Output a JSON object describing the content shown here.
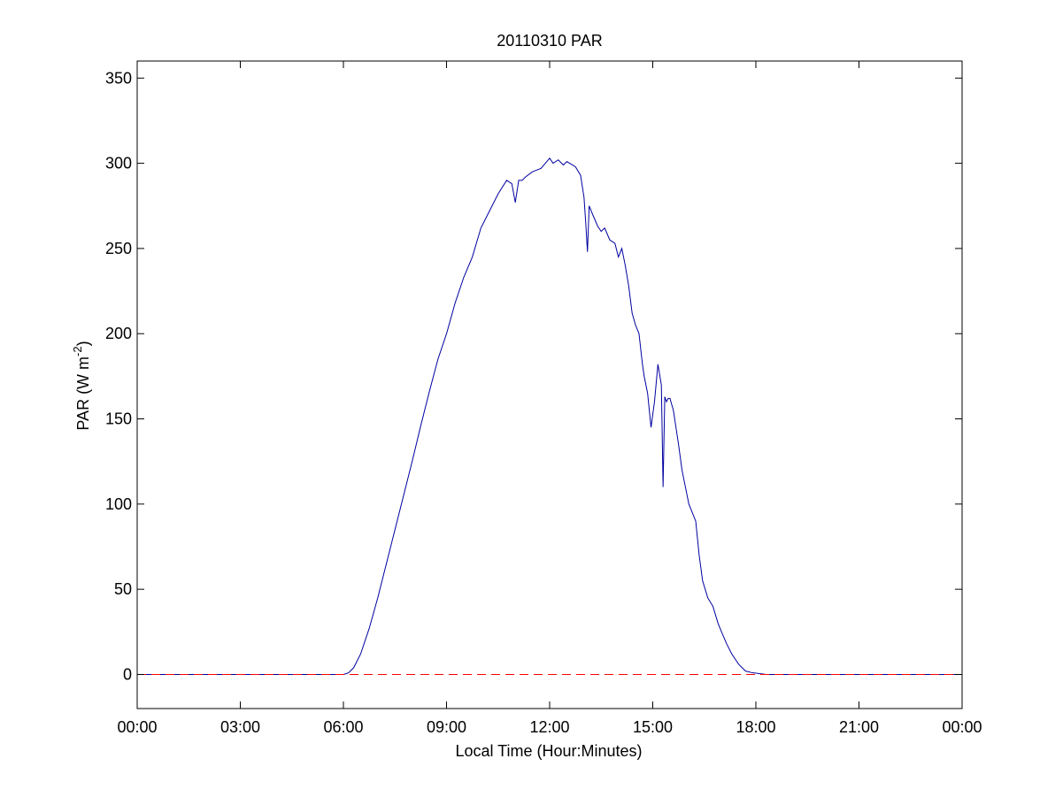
{
  "chart_data": {
    "type": "line",
    "title": "20110310 PAR",
    "xlabel": "Local Time (Hour:Minutes)",
    "ylabel": {
      "main": "PAR (W m",
      "superscript": "-2",
      "close": ")"
    },
    "x_unit": "hours",
    "xlim": [
      0,
      24
    ],
    "ylim": [
      -20,
      360
    ],
    "x_ticks": [
      {
        "value": 0,
        "label": "00:00"
      },
      {
        "value": 3,
        "label": "03:00"
      },
      {
        "value": 6,
        "label": "06:00"
      },
      {
        "value": 9,
        "label": "09:00"
      },
      {
        "value": 12,
        "label": "12:00"
      },
      {
        "value": 15,
        "label": "15:00"
      },
      {
        "value": 18,
        "label": "18:00"
      },
      {
        "value": 21,
        "label": "21:00"
      },
      {
        "value": 24,
        "label": "00:00"
      }
    ],
    "y_ticks": [
      {
        "value": 0,
        "label": "0"
      },
      {
        "value": 50,
        "label": "50"
      },
      {
        "value": 100,
        "label": "100"
      },
      {
        "value": 150,
        "label": "150"
      },
      {
        "value": 200,
        "label": "200"
      },
      {
        "value": 250,
        "label": "250"
      },
      {
        "value": 300,
        "label": "300"
      },
      {
        "value": 350,
        "label": "350"
      }
    ],
    "grid": false,
    "legend": "none",
    "series": [
      {
        "color": "#0000a0",
        "style": "solid",
        "x": [
          0,
          6.0,
          6.15,
          6.3,
          6.5,
          6.75,
          7.0,
          7.25,
          7.5,
          7.75,
          8.0,
          8.25,
          8.5,
          8.75,
          9.0,
          9.25,
          9.5,
          9.75,
          10.0,
          10.25,
          10.5,
          10.75,
          10.9,
          11.0,
          11.1,
          11.2,
          11.3,
          11.5,
          11.75,
          12.0,
          12.1,
          12.25,
          12.4,
          12.5,
          12.75,
          12.9,
          13.0,
          13.05,
          13.1,
          13.15,
          13.25,
          13.4,
          13.5,
          13.6,
          13.75,
          13.9,
          14.0,
          14.1,
          14.2,
          14.3,
          14.4,
          14.5,
          14.6,
          14.7,
          14.75,
          14.85,
          14.95,
          15.05,
          15.15,
          15.25,
          15.3,
          15.35,
          15.4,
          15.45,
          15.5,
          15.6,
          15.75,
          15.85,
          15.95,
          16.05,
          16.15,
          16.25,
          16.35,
          16.45,
          16.6,
          16.75,
          16.9,
          17.0,
          17.15,
          17.3,
          17.5,
          17.7,
          17.9,
          18.1,
          18.3,
          18.6,
          19.0,
          24.0
        ],
        "values": [
          0,
          0,
          1,
          4,
          12,
          27,
          45,
          65,
          85,
          105,
          125,
          146,
          166,
          185,
          200,
          218,
          233,
          245,
          262,
          272,
          282,
          290,
          288,
          277,
          290,
          290,
          292,
          295,
          297,
          303,
          300,
          302,
          299,
          301,
          298,
          293,
          280,
          265,
          248,
          275,
          270,
          263,
          260,
          262,
          255,
          253,
          245,
          250,
          240,
          228,
          212,
          205,
          200,
          182,
          175,
          165,
          145,
          160,
          182,
          170,
          110,
          163,
          160,
          162,
          162,
          155,
          135,
          120,
          110,
          100,
          95,
          90,
          70,
          55,
          45,
          40,
          30,
          25,
          18,
          12,
          6,
          2,
          1,
          0.5,
          0,
          0,
          0,
          0
        ]
      },
      {
        "color": "#ff0000",
        "style": "dashed",
        "x": [
          0,
          24
        ],
        "values": [
          0,
          0
        ]
      }
    ]
  }
}
